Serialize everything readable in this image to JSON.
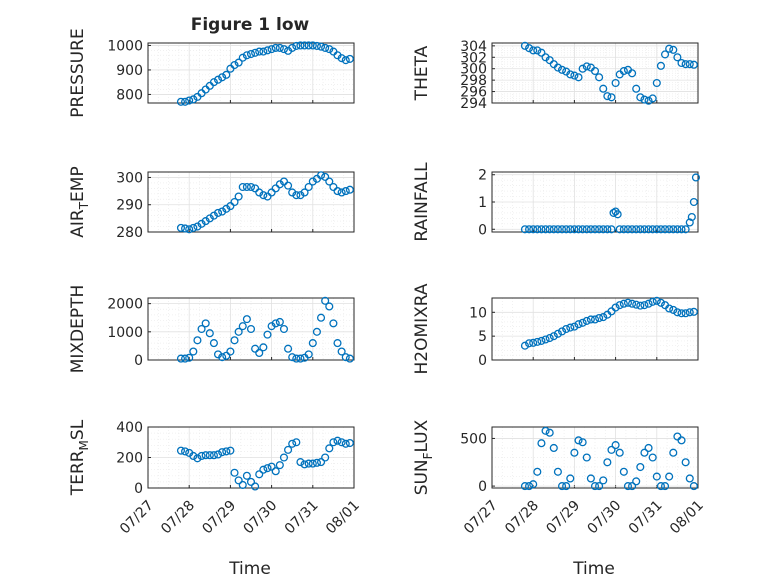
{
  "figure": {
    "title": "Figure 1 low",
    "xlabel": "Time"
  },
  "colors": {
    "marker": "#0072bd",
    "axes": "#262626",
    "grid": "#e1e1e1"
  },
  "x_ticks": [
    "07/27",
    "07/28",
    "07/29",
    "07/30",
    "07/31",
    "08/01"
  ],
  "chart_data": [
    {
      "type": "scatter",
      "ylabel": "PRESSURE",
      "ylim": [
        765,
        1010
      ],
      "yticks": [
        800,
        900,
        1000
      ],
      "x_range": [
        "07/27",
        "08/01"
      ],
      "grid": true,
      "x": [
        0.8,
        0.9,
        1.0,
        1.1,
        1.2,
        1.3,
        1.4,
        1.5,
        1.6,
        1.7,
        1.8,
        1.9,
        2.0,
        2.1,
        2.2,
        2.3,
        2.4,
        2.5,
        2.6,
        2.7,
        2.8,
        2.9,
        3.0,
        3.1,
        3.2,
        3.3,
        3.4,
        3.5,
        3.6,
        3.7,
        3.8,
        3.9,
        4.0,
        4.1,
        4.2,
        4.3,
        4.4,
        4.5,
        4.6,
        4.7,
        4.8,
        4.9
      ],
      "y": [
        770,
        770,
        775,
        780,
        790,
        805,
        820,
        835,
        850,
        860,
        870,
        880,
        905,
        920,
        930,
        950,
        960,
        965,
        970,
        975,
        975,
        980,
        985,
        990,
        990,
        985,
        978,
        990,
        998,
        1000,
        1000,
        1000,
        1000,
        998,
        995,
        990,
        985,
        975,
        960,
        948,
        940,
        945
      ]
    },
    {
      "type": "scatter",
      "ylabel": "THETA",
      "ylim": [
        294,
        304.5
      ],
      "yticks": [
        294,
        296,
        298,
        300,
        302,
        304
      ],
      "x_range": [
        "07/27",
        "08/01"
      ],
      "grid": true,
      "x": [
        0.8,
        0.9,
        1.0,
        1.1,
        1.2,
        1.3,
        1.4,
        1.5,
        1.6,
        1.7,
        1.8,
        1.9,
        2.0,
        2.1,
        2.2,
        2.3,
        2.4,
        2.5,
        2.6,
        2.7,
        2.8,
        2.9,
        3.0,
        3.1,
        3.2,
        3.3,
        3.4,
        3.5,
        3.6,
        3.7,
        3.8,
        3.9,
        4.0,
        4.1,
        4.2,
        4.3,
        4.4,
        4.5,
        4.6,
        4.7,
        4.8,
        4.9
      ],
      "y": [
        304,
        303.6,
        303.2,
        303.2,
        302.8,
        302,
        301.5,
        300.8,
        300.2,
        299.8,
        299.5,
        299,
        298.8,
        298.5,
        300,
        300.4,
        300.2,
        299.6,
        298.5,
        296.5,
        295.2,
        295,
        297.5,
        299,
        299.6,
        299.8,
        299.2,
        296.5,
        295,
        294.6,
        294.4,
        294.8,
        297.5,
        300.5,
        302.5,
        303.5,
        303.3,
        302,
        301,
        300.8,
        300.8,
        300.7
      ]
    },
    {
      "type": "scatter",
      "ylabel": "AIR_TEMP",
      "ylim": [
        280,
        302
      ],
      "yticks": [
        280,
        290,
        300
      ],
      "x_range": [
        "07/27",
        "08/01"
      ],
      "grid": true,
      "x": [
        0.8,
        0.9,
        1.0,
        1.1,
        1.2,
        1.3,
        1.4,
        1.5,
        1.6,
        1.7,
        1.8,
        1.9,
        2.0,
        2.1,
        2.2,
        2.3,
        2.4,
        2.5,
        2.6,
        2.7,
        2.8,
        2.9,
        3.0,
        3.1,
        3.2,
        3.3,
        3.4,
        3.5,
        3.6,
        3.7,
        3.8,
        3.9,
        4.0,
        4.1,
        4.2,
        4.3,
        4.4,
        4.5,
        4.6,
        4.7,
        4.8,
        4.9
      ],
      "y": [
        281.5,
        281.3,
        281,
        281.5,
        282,
        283,
        284,
        285,
        286,
        287,
        287.5,
        288.5,
        289.5,
        291,
        293,
        296.5,
        296.5,
        296.5,
        296,
        294.5,
        293.5,
        293,
        294.5,
        296,
        297.5,
        298.5,
        297,
        294.5,
        293.5,
        293.5,
        294.5,
        296.5,
        298.5,
        299.5,
        300.8,
        300.2,
        298.5,
        296.5,
        295,
        294.5,
        295,
        295.5
      ]
    },
    {
      "type": "scatter",
      "ylabel": "RAINFALL",
      "ylim": [
        -0.1,
        2.1
      ],
      "yticks": [
        0,
        1,
        2
      ],
      "x_range": [
        "07/27",
        "08/01"
      ],
      "grid": true,
      "x": [
        0.8,
        0.9,
        1.0,
        1.1,
        1.2,
        1.3,
        1.4,
        1.5,
        1.6,
        1.7,
        1.8,
        1.9,
        2.0,
        2.1,
        2.2,
        2.3,
        2.4,
        2.5,
        2.6,
        2.7,
        2.8,
        2.9,
        2.95,
        3.0,
        3.05,
        3.1,
        3.2,
        3.3,
        3.4,
        3.5,
        3.6,
        3.7,
        3.8,
        3.9,
        4.0,
        4.1,
        4.2,
        4.3,
        4.4,
        4.5,
        4.6,
        4.7,
        4.8,
        4.85,
        4.9,
        4.95
      ],
      "y": [
        0,
        0,
        0,
        0,
        0,
        0,
        0,
        0,
        0,
        0,
        0,
        0,
        0,
        0,
        0,
        0,
        0,
        0,
        0,
        0,
        0,
        0,
        0.6,
        0.65,
        0.55,
        0,
        0,
        0,
        0,
        0,
        0,
        0,
        0,
        0,
        0,
        0,
        0,
        0,
        0,
        0,
        0,
        0,
        0.25,
        0.45,
        1.0,
        1.9
      ]
    },
    {
      "type": "scatter",
      "ylabel": "MIXDEPTH",
      "ylim": [
        0,
        2200
      ],
      "yticks": [
        0,
        1000,
        2000
      ],
      "x_range": [
        "07/27",
        "08/01"
      ],
      "grid": true,
      "x": [
        0.8,
        0.9,
        1.0,
        1.1,
        1.2,
        1.3,
        1.4,
        1.5,
        1.6,
        1.7,
        1.8,
        1.9,
        2.0,
        2.1,
        2.2,
        2.3,
        2.4,
        2.5,
        2.6,
        2.7,
        2.8,
        2.9,
        3.0,
        3.1,
        3.2,
        3.3,
        3.4,
        3.5,
        3.6,
        3.7,
        3.8,
        3.9,
        4.0,
        4.1,
        4.2,
        4.3,
        4.4,
        4.5,
        4.6,
        4.7,
        4.8,
        4.9
      ],
      "y": [
        50,
        50,
        80,
        300,
        700,
        1100,
        1300,
        950,
        600,
        200,
        100,
        150,
        300,
        700,
        1000,
        1200,
        1450,
        1100,
        400,
        250,
        450,
        900,
        1200,
        1300,
        1350,
        1100,
        400,
        100,
        50,
        50,
        80,
        200,
        600,
        1000,
        1500,
        2100,
        1900,
        1300,
        600,
        300,
        100,
        50
      ]
    },
    {
      "type": "scatter",
      "ylabel": "H2OMIXRA",
      "ylim": [
        0,
        13
      ],
      "yticks": [
        0,
        5,
        10
      ],
      "x_range": [
        "07/27",
        "08/01"
      ],
      "grid": true,
      "x": [
        0.8,
        0.9,
        1.0,
        1.1,
        1.2,
        1.3,
        1.4,
        1.5,
        1.6,
        1.7,
        1.8,
        1.9,
        2.0,
        2.1,
        2.2,
        2.3,
        2.4,
        2.5,
        2.6,
        2.7,
        2.8,
        2.9,
        3.0,
        3.1,
        3.2,
        3.3,
        3.4,
        3.5,
        3.6,
        3.7,
        3.8,
        3.9,
        4.0,
        4.1,
        4.2,
        4.3,
        4.4,
        4.5,
        4.6,
        4.7,
        4.8,
        4.9
      ],
      "y": [
        3.0,
        3.5,
        3.6,
        3.8,
        4.0,
        4.3,
        4.6,
        5.0,
        5.5,
        6.0,
        6.5,
        6.8,
        7.0,
        7.5,
        7.8,
        8.2,
        8.5,
        8.5,
        8.8,
        9.0,
        9.5,
        10.2,
        11.0,
        11.5,
        11.8,
        12.0,
        11.8,
        11.6,
        11.4,
        11.5,
        11.8,
        12.2,
        12.4,
        12.0,
        11.5,
        10.8,
        10.5,
        10.0,
        9.8,
        9.8,
        10.0,
        10.1
      ]
    },
    {
      "type": "scatter",
      "ylabel": "TERR_MSL",
      "ylim": [
        0,
        400
      ],
      "yticks": [
        0,
        200,
        400
      ],
      "x_range": [
        "07/27",
        "08/01"
      ],
      "grid": true,
      "x": [
        0.8,
        0.9,
        1.0,
        1.1,
        1.2,
        1.3,
        1.4,
        1.5,
        1.6,
        1.7,
        1.8,
        1.9,
        2.0,
        2.1,
        2.2,
        2.3,
        2.4,
        2.5,
        2.6,
        2.7,
        2.8,
        2.9,
        3.0,
        3.1,
        3.2,
        3.3,
        3.4,
        3.5,
        3.6,
        3.7,
        3.8,
        3.9,
        4.0,
        4.1,
        4.2,
        4.3,
        4.4,
        4.5,
        4.6,
        4.7,
        4.8,
        4.9
      ],
      "y": [
        245,
        240,
        230,
        210,
        195,
        210,
        215,
        215,
        215,
        220,
        235,
        240,
        245,
        100,
        50,
        20,
        80,
        40,
        10,
        90,
        120,
        130,
        140,
        110,
        150,
        200,
        250,
        290,
        300,
        170,
        155,
        160,
        160,
        165,
        170,
        200,
        260,
        300,
        310,
        300,
        290,
        295
      ]
    },
    {
      "type": "scatter",
      "ylabel": "SUN_FLUX",
      "ylim": [
        -20,
        620
      ],
      "yticks": [
        0,
        500
      ],
      "x_range": [
        "07/27",
        "08/01"
      ],
      "grid": true,
      "x": [
        0.8,
        0.9,
        1.0,
        1.1,
        1.2,
        1.3,
        1.4,
        1.5,
        1.6,
        1.7,
        1.8,
        1.9,
        2.0,
        2.1,
        2.2,
        2.3,
        2.4,
        2.5,
        2.6,
        2.7,
        2.8,
        2.9,
        3.0,
        3.1,
        3.2,
        3.3,
        3.4,
        3.5,
        3.6,
        3.7,
        3.8,
        3.9,
        4.0,
        4.1,
        4.2,
        4.3,
        4.4,
        4.5,
        4.6,
        4.7,
        4.8,
        4.9
      ],
      "y": [
        0,
        0,
        20,
        150,
        450,
        580,
        560,
        400,
        150,
        0,
        0,
        80,
        350,
        480,
        460,
        300,
        80,
        0,
        0,
        60,
        250,
        380,
        430,
        350,
        150,
        0,
        0,
        50,
        200,
        350,
        400,
        300,
        100,
        0,
        0,
        100,
        350,
        520,
        480,
        250,
        80,
        0
      ]
    }
  ]
}
